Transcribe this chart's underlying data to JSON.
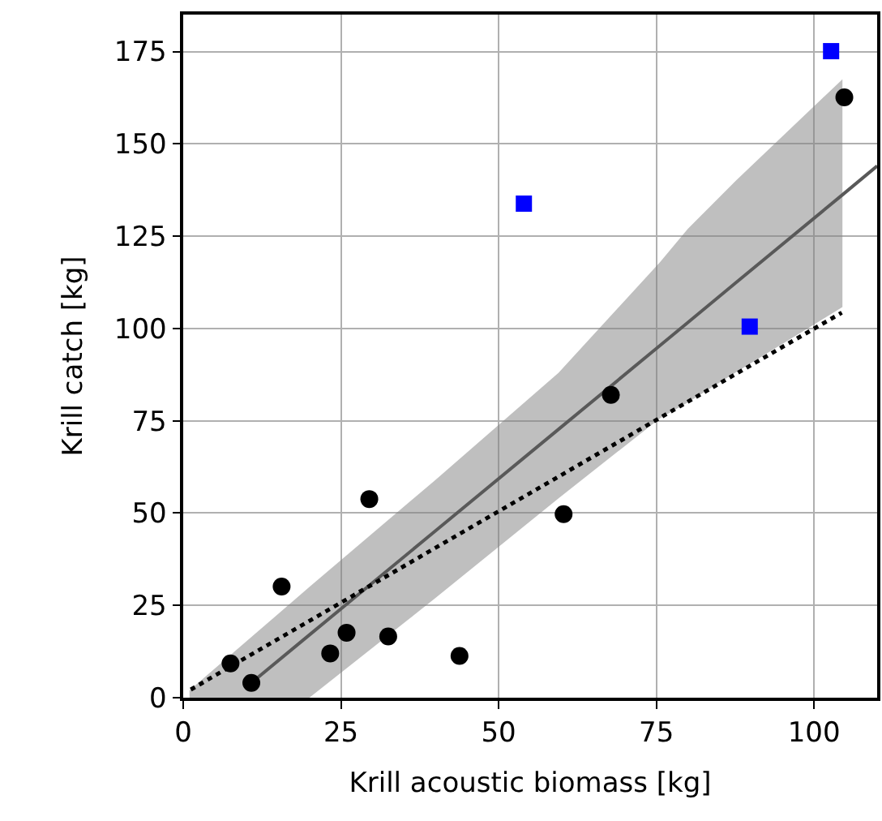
{
  "chart_data": {
    "type": "scatter",
    "xlabel": "Krill acoustic biomass [kg]",
    "ylabel": "Krill catch [kg]",
    "xlim": [
      0,
      110
    ],
    "ylim": [
      0,
      185
    ],
    "xticks": [
      0,
      25,
      50,
      75,
      100
    ],
    "yticks": [
      0,
      25,
      50,
      75,
      100,
      125,
      150,
      175
    ],
    "grid": true,
    "series": [
      {
        "type": "line",
        "color": "#595959",
        "line_style": "solid",
        "marker": "none",
        "x": [
          1,
          10.8,
          20,
          40,
          59.5,
          75.6,
          80,
          87.6,
          104.5,
          110
        ],
        "values": [
          null,
          4,
          17,
          45.2,
          72.7,
          95.4,
          101.6,
          112.4,
          136.2,
          144
        ],
        "lower": [
          0,
          0,
          0,
          27,
          54,
          75.7,
          80,
          88.1,
          105.8,
          null
        ],
        "upper": [
          2,
          16.4,
          30,
          59,
          88,
          118,
          127,
          140,
          167.5,
          null
        ]
      },
      {
        "type": "line",
        "color": "#000000",
        "line_style": "dotted",
        "marker": "none",
        "x": [
          1.2,
          104.4
        ],
        "values": [
          2.2,
          104.3
        ]
      },
      {
        "color": "#000000",
        "marker": "circle",
        "x": [
          7.5,
          10.8,
          15.6,
          23.3,
          25.9,
          29.5,
          32.5,
          43.8,
          60.3,
          67.8,
          104.8
        ],
        "values": [
          9.3,
          4,
          30.1,
          12,
          17.6,
          53.8,
          16.6,
          11.3,
          49.7,
          82,
          162.6
        ]
      },
      {
        "color": "#0000ff",
        "marker": "square",
        "x": [
          54,
          89.8,
          102.7
        ],
        "values": [
          133.8,
          100.5,
          175.1
        ]
      }
    ]
  }
}
